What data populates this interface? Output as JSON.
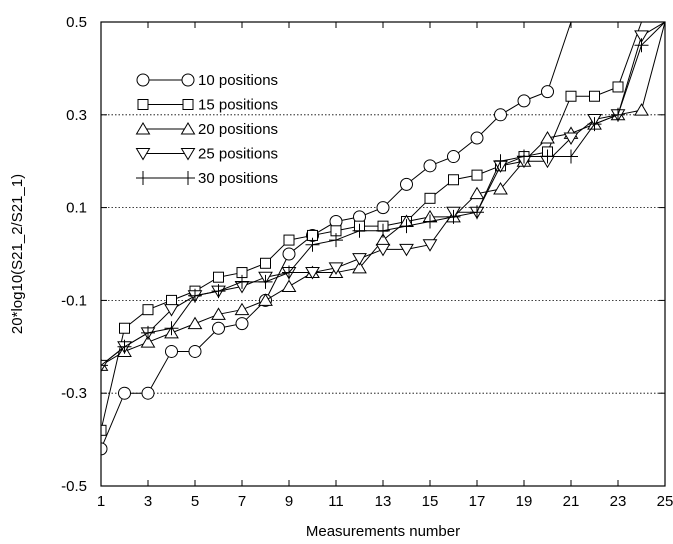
{
  "chart_data": {
    "type": "line",
    "title": "",
    "xlabel": "Measurements number",
    "ylabel": "20*log10(S21_2/S21_1)",
    "xlim": [
      1,
      25
    ],
    "ylim": [
      -0.5,
      0.5
    ],
    "x_ticks": [
      "1",
      "3",
      "5",
      "7",
      "9",
      "11",
      "13",
      "15",
      "17",
      "19",
      "21",
      "23",
      "25"
    ],
    "y_ticks": [
      "-0.5",
      "-0.3",
      "-0.1",
      "0.1",
      "0.3",
      "0.5"
    ],
    "grid": "dotted horizontal lines at -0.3, -0.1, 0.1, 0.3",
    "legend": "top-left",
    "series": [
      {
        "name": "10 positions",
        "marker": "circle",
        "x": [
          1,
          2,
          3,
          4,
          5,
          6,
          7,
          8,
          9,
          10,
          11,
          12,
          13,
          14,
          15,
          16,
          17,
          18,
          19,
          20,
          21
        ],
        "values": [
          -0.42,
          -0.3,
          -0.3,
          -0.21,
          -0.21,
          -0.16,
          -0.15,
          -0.1,
          0.0,
          0.04,
          0.07,
          0.08,
          0.1,
          0.15,
          0.19,
          0.21,
          0.25,
          0.3,
          0.33,
          0.35,
          0.5
        ]
      },
      {
        "name": "15 positions",
        "marker": "square",
        "x": [
          1,
          2,
          3,
          4,
          5,
          6,
          7,
          8,
          9,
          10,
          11,
          12,
          13,
          14,
          15,
          16,
          17,
          18,
          19,
          20,
          21,
          22,
          23,
          24
        ],
        "values": [
          -0.38,
          -0.16,
          -0.12,
          -0.1,
          -0.08,
          -0.05,
          -0.04,
          -0.02,
          0.03,
          0.04,
          0.05,
          0.06,
          0.06,
          0.07,
          0.12,
          0.16,
          0.17,
          0.19,
          0.21,
          0.22,
          0.34,
          0.34,
          0.36,
          0.5
        ]
      },
      {
        "name": "20 positions",
        "marker": "triangle-up",
        "x": [
          1,
          2,
          3,
          4,
          5,
          6,
          7,
          8,
          9,
          10,
          11,
          12,
          13,
          14,
          15,
          16,
          17,
          18,
          19,
          20,
          21,
          22,
          23,
          24,
          25
        ],
        "values": [
          -0.24,
          -0.21,
          -0.19,
          -0.17,
          -0.15,
          -0.13,
          -0.12,
          -0.1,
          -0.07,
          -0.04,
          -0.04,
          -0.03,
          0.03,
          0.07,
          0.08,
          0.08,
          0.13,
          0.14,
          0.2,
          0.25,
          0.26,
          0.28,
          0.3,
          0.31,
          0.5
        ]
      },
      {
        "name": "25 positions",
        "marker": "triangle-down",
        "x": [
          1,
          2,
          3,
          4,
          5,
          6,
          7,
          8,
          9,
          10,
          11,
          12,
          13,
          14,
          15,
          16,
          17,
          18,
          19,
          20,
          21,
          22,
          23,
          24,
          25
        ],
        "values": [
          -0.24,
          -0.2,
          -0.17,
          -0.12,
          -0.09,
          -0.08,
          -0.07,
          -0.05,
          -0.04,
          -0.04,
          -0.03,
          -0.01,
          0.01,
          0.01,
          0.02,
          0.09,
          0.09,
          0.19,
          0.2,
          0.2,
          0.25,
          0.29,
          0.3,
          0.47,
          0.5
        ]
      },
      {
        "name": "30 positions",
        "marker": "plus",
        "x": [
          1,
          2,
          3,
          4,
          5,
          6,
          7,
          8,
          9,
          10,
          11,
          12,
          13,
          14,
          15,
          16,
          17,
          18,
          19,
          20,
          21,
          22,
          23,
          24,
          25
        ],
        "values": [
          -0.24,
          -0.2,
          -0.17,
          -0.16,
          -0.09,
          -0.08,
          -0.06,
          -0.06,
          -0.04,
          0.02,
          0.03,
          0.05,
          0.05,
          0.06,
          0.07,
          0.08,
          0.09,
          0.2,
          0.21,
          0.21,
          0.21,
          0.28,
          0.3,
          0.45,
          0.5
        ]
      }
    ]
  }
}
